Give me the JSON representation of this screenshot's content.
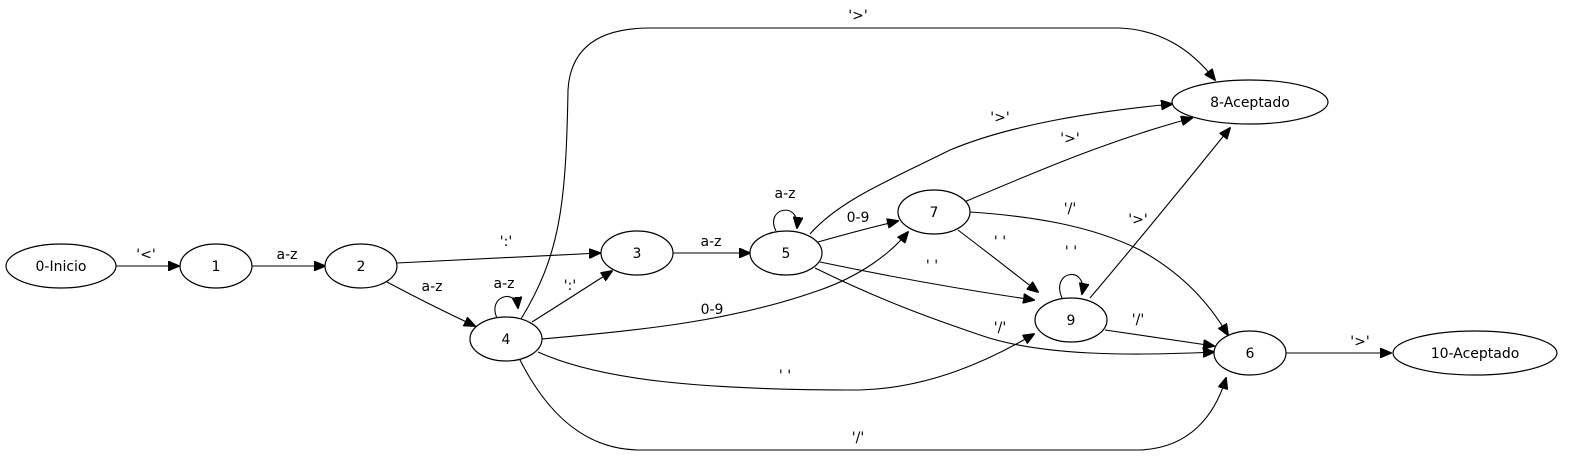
{
  "nodes": [
    {
      "id": "n0",
      "label": "0-Inicio"
    },
    {
      "id": "n1",
      "label": "1"
    },
    {
      "id": "n2",
      "label": "2"
    },
    {
      "id": "n3",
      "label": "3"
    },
    {
      "id": "n4",
      "label": "4"
    },
    {
      "id": "n5",
      "label": "5"
    },
    {
      "id": "n7",
      "label": "7"
    },
    {
      "id": "n9",
      "label": "9"
    },
    {
      "id": "n6",
      "label": "6"
    },
    {
      "id": "n8",
      "label": "8-Aceptado"
    },
    {
      "id": "n10",
      "label": "10-Aceptado"
    }
  ],
  "edges": [
    {
      "id": "e-0-1",
      "from": "0-Inicio",
      "to": "1",
      "label": "'<'"
    },
    {
      "id": "e-1-2",
      "from": "1",
      "to": "2",
      "label": "a-z"
    },
    {
      "id": "e-2-3",
      "from": "2",
      "to": "3",
      "label": "':'"
    },
    {
      "id": "e-2-4",
      "from": "2",
      "to": "4",
      "label": "a-z"
    },
    {
      "id": "e-4-4",
      "from": "4",
      "to": "4",
      "label": "a-z"
    },
    {
      "id": "e-4-3",
      "from": "4",
      "to": "3",
      "label": "':'"
    },
    {
      "id": "e-4-8",
      "from": "4",
      "to": "8-Aceptado",
      "label": "'>'"
    },
    {
      "id": "e-4-7",
      "from": "4",
      "to": "7",
      "label": "0-9"
    },
    {
      "id": "e-4-9",
      "from": "4",
      "to": "9",
      "label": "' '"
    },
    {
      "id": "e-4-6",
      "from": "4",
      "to": "6",
      "label": "'/'"
    },
    {
      "id": "e-3-5",
      "from": "3",
      "to": "5",
      "label": "a-z"
    },
    {
      "id": "e-5-5",
      "from": "5",
      "to": "5",
      "label": "a-z"
    },
    {
      "id": "e-5-7",
      "from": "5",
      "to": "7",
      "label": "0-9"
    },
    {
      "id": "e-5-8",
      "from": "5",
      "to": "8-Aceptado",
      "label": "'>'"
    },
    {
      "id": "e-5-9",
      "from": "5",
      "to": "9",
      "label": "' '"
    },
    {
      "id": "e-5-6",
      "from": "5",
      "to": "6",
      "label": "'/'"
    },
    {
      "id": "e-7-8",
      "from": "7",
      "to": "8-Aceptado",
      "label": "'>'"
    },
    {
      "id": "e-7-6",
      "from": "7",
      "to": "6",
      "label": "'/'"
    },
    {
      "id": "e-7-9",
      "from": "7",
      "to": "9",
      "label": "' '"
    },
    {
      "id": "e-9-9",
      "from": "9",
      "to": "9",
      "label": "' '"
    },
    {
      "id": "e-9-8",
      "from": "9",
      "to": "8-Aceptado",
      "label": "'>'"
    },
    {
      "id": "e-9-6",
      "from": "9",
      "to": "6",
      "label": "'/'"
    },
    {
      "id": "e-6-10",
      "from": "6",
      "to": "10-Aceptado",
      "label": "'>'"
    }
  ]
}
